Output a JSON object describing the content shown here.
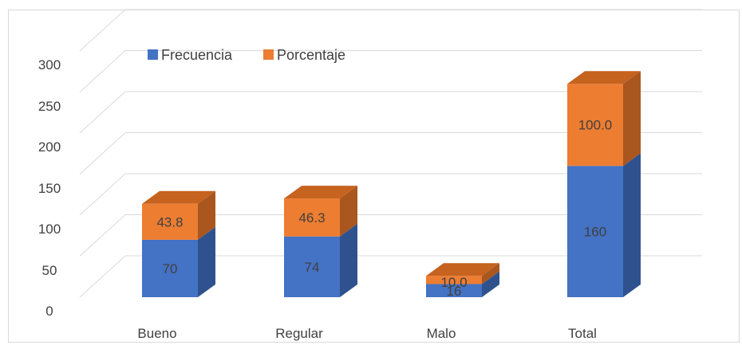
{
  "chart_data": {
    "type": "bar",
    "stacked": true,
    "three_d": true,
    "categories": [
      "Bueno",
      "Regular",
      "Malo",
      "Total"
    ],
    "series": [
      {
        "name": "Frecuencia",
        "values": [
          70,
          74,
          16,
          160
        ],
        "labels": [
          "70",
          "74",
          "16",
          "160"
        ]
      },
      {
        "name": "Porcentaje",
        "values": [
          43.8,
          46.3,
          10.0,
          100.0
        ],
        "labels": [
          "43.8",
          "46.3",
          "10.0",
          "100.0"
        ]
      }
    ],
    "y_ticks": [
      0,
      50,
      100,
      150,
      200,
      250,
      300
    ],
    "ylim": [
      0,
      300
    ],
    "grid": true,
    "legend_position": "top-left",
    "colors": {
      "Frecuencia": {
        "front": "#4472c4",
        "side": "#2f528f",
        "top": "#5b86d6"
      },
      "Porcentaje": {
        "front": "#ed7d31",
        "side": "#a9561f",
        "top": "#c5631f"
      },
      "grid": "#d9d9d9",
      "text": "#404040"
    }
  }
}
